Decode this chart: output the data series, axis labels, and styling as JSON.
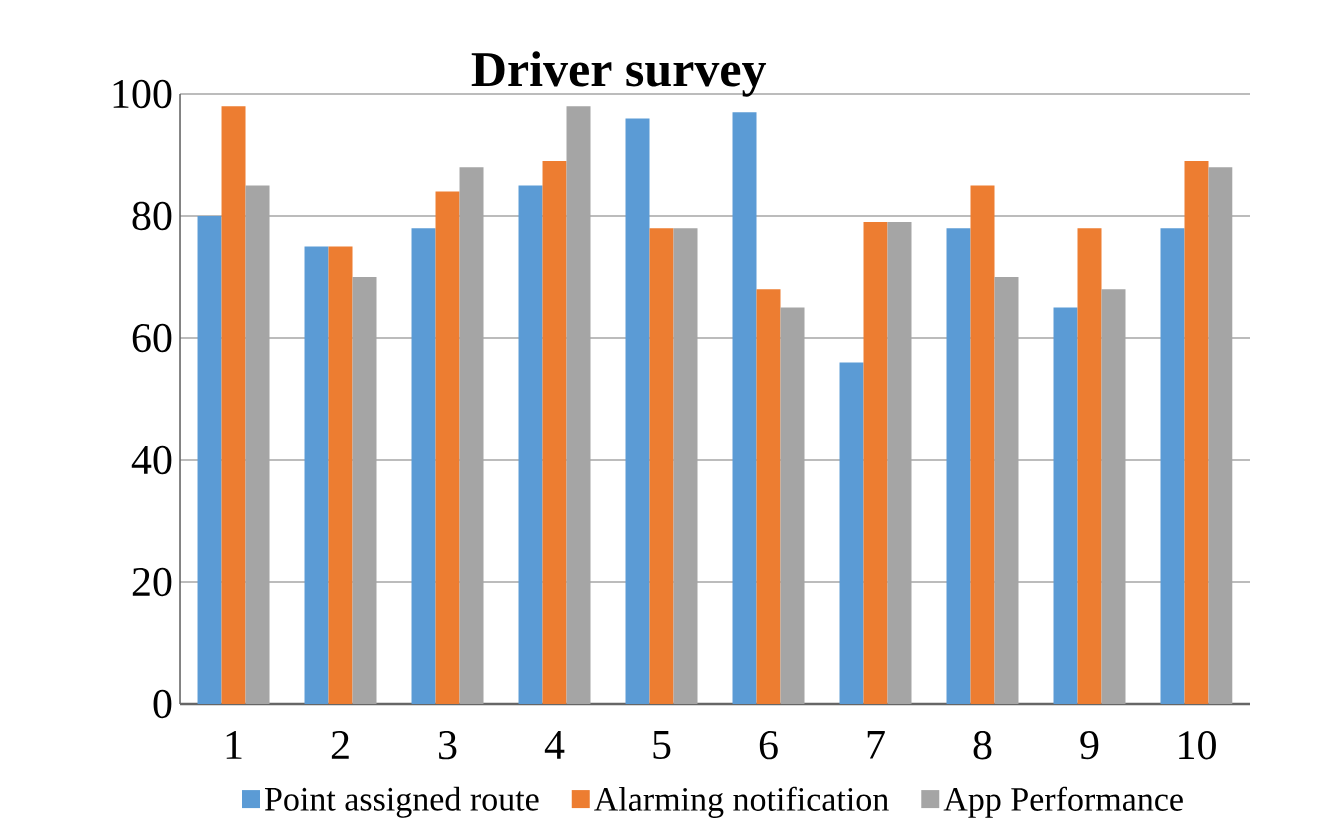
{
  "chart_data": {
    "type": "bar",
    "title": "Driver survey",
    "categories": [
      "1",
      "2",
      "3",
      "4",
      "5",
      "6",
      "7",
      "8",
      "9",
      "10"
    ],
    "series": [
      {
        "name": "Point assigned route",
        "color": "#5b9bd5",
        "values": [
          80,
          75,
          78,
          85,
          96,
          97,
          56,
          78,
          65,
          78
        ]
      },
      {
        "name": "Alarming notification",
        "color": "#ed7d31",
        "values": [
          98,
          75,
          84,
          89,
          78,
          68,
          79,
          85,
          78,
          89
        ]
      },
      {
        "name": "App Performance",
        "color": "#a5a5a5",
        "values": [
          85,
          70,
          88,
          98,
          78,
          65,
          79,
          70,
          68,
          88
        ]
      }
    ],
    "ylim": [
      0,
      100
    ],
    "yticks": [
      0,
      20,
      40,
      60,
      80,
      100
    ],
    "grid": "y",
    "legend": "bottom"
  }
}
